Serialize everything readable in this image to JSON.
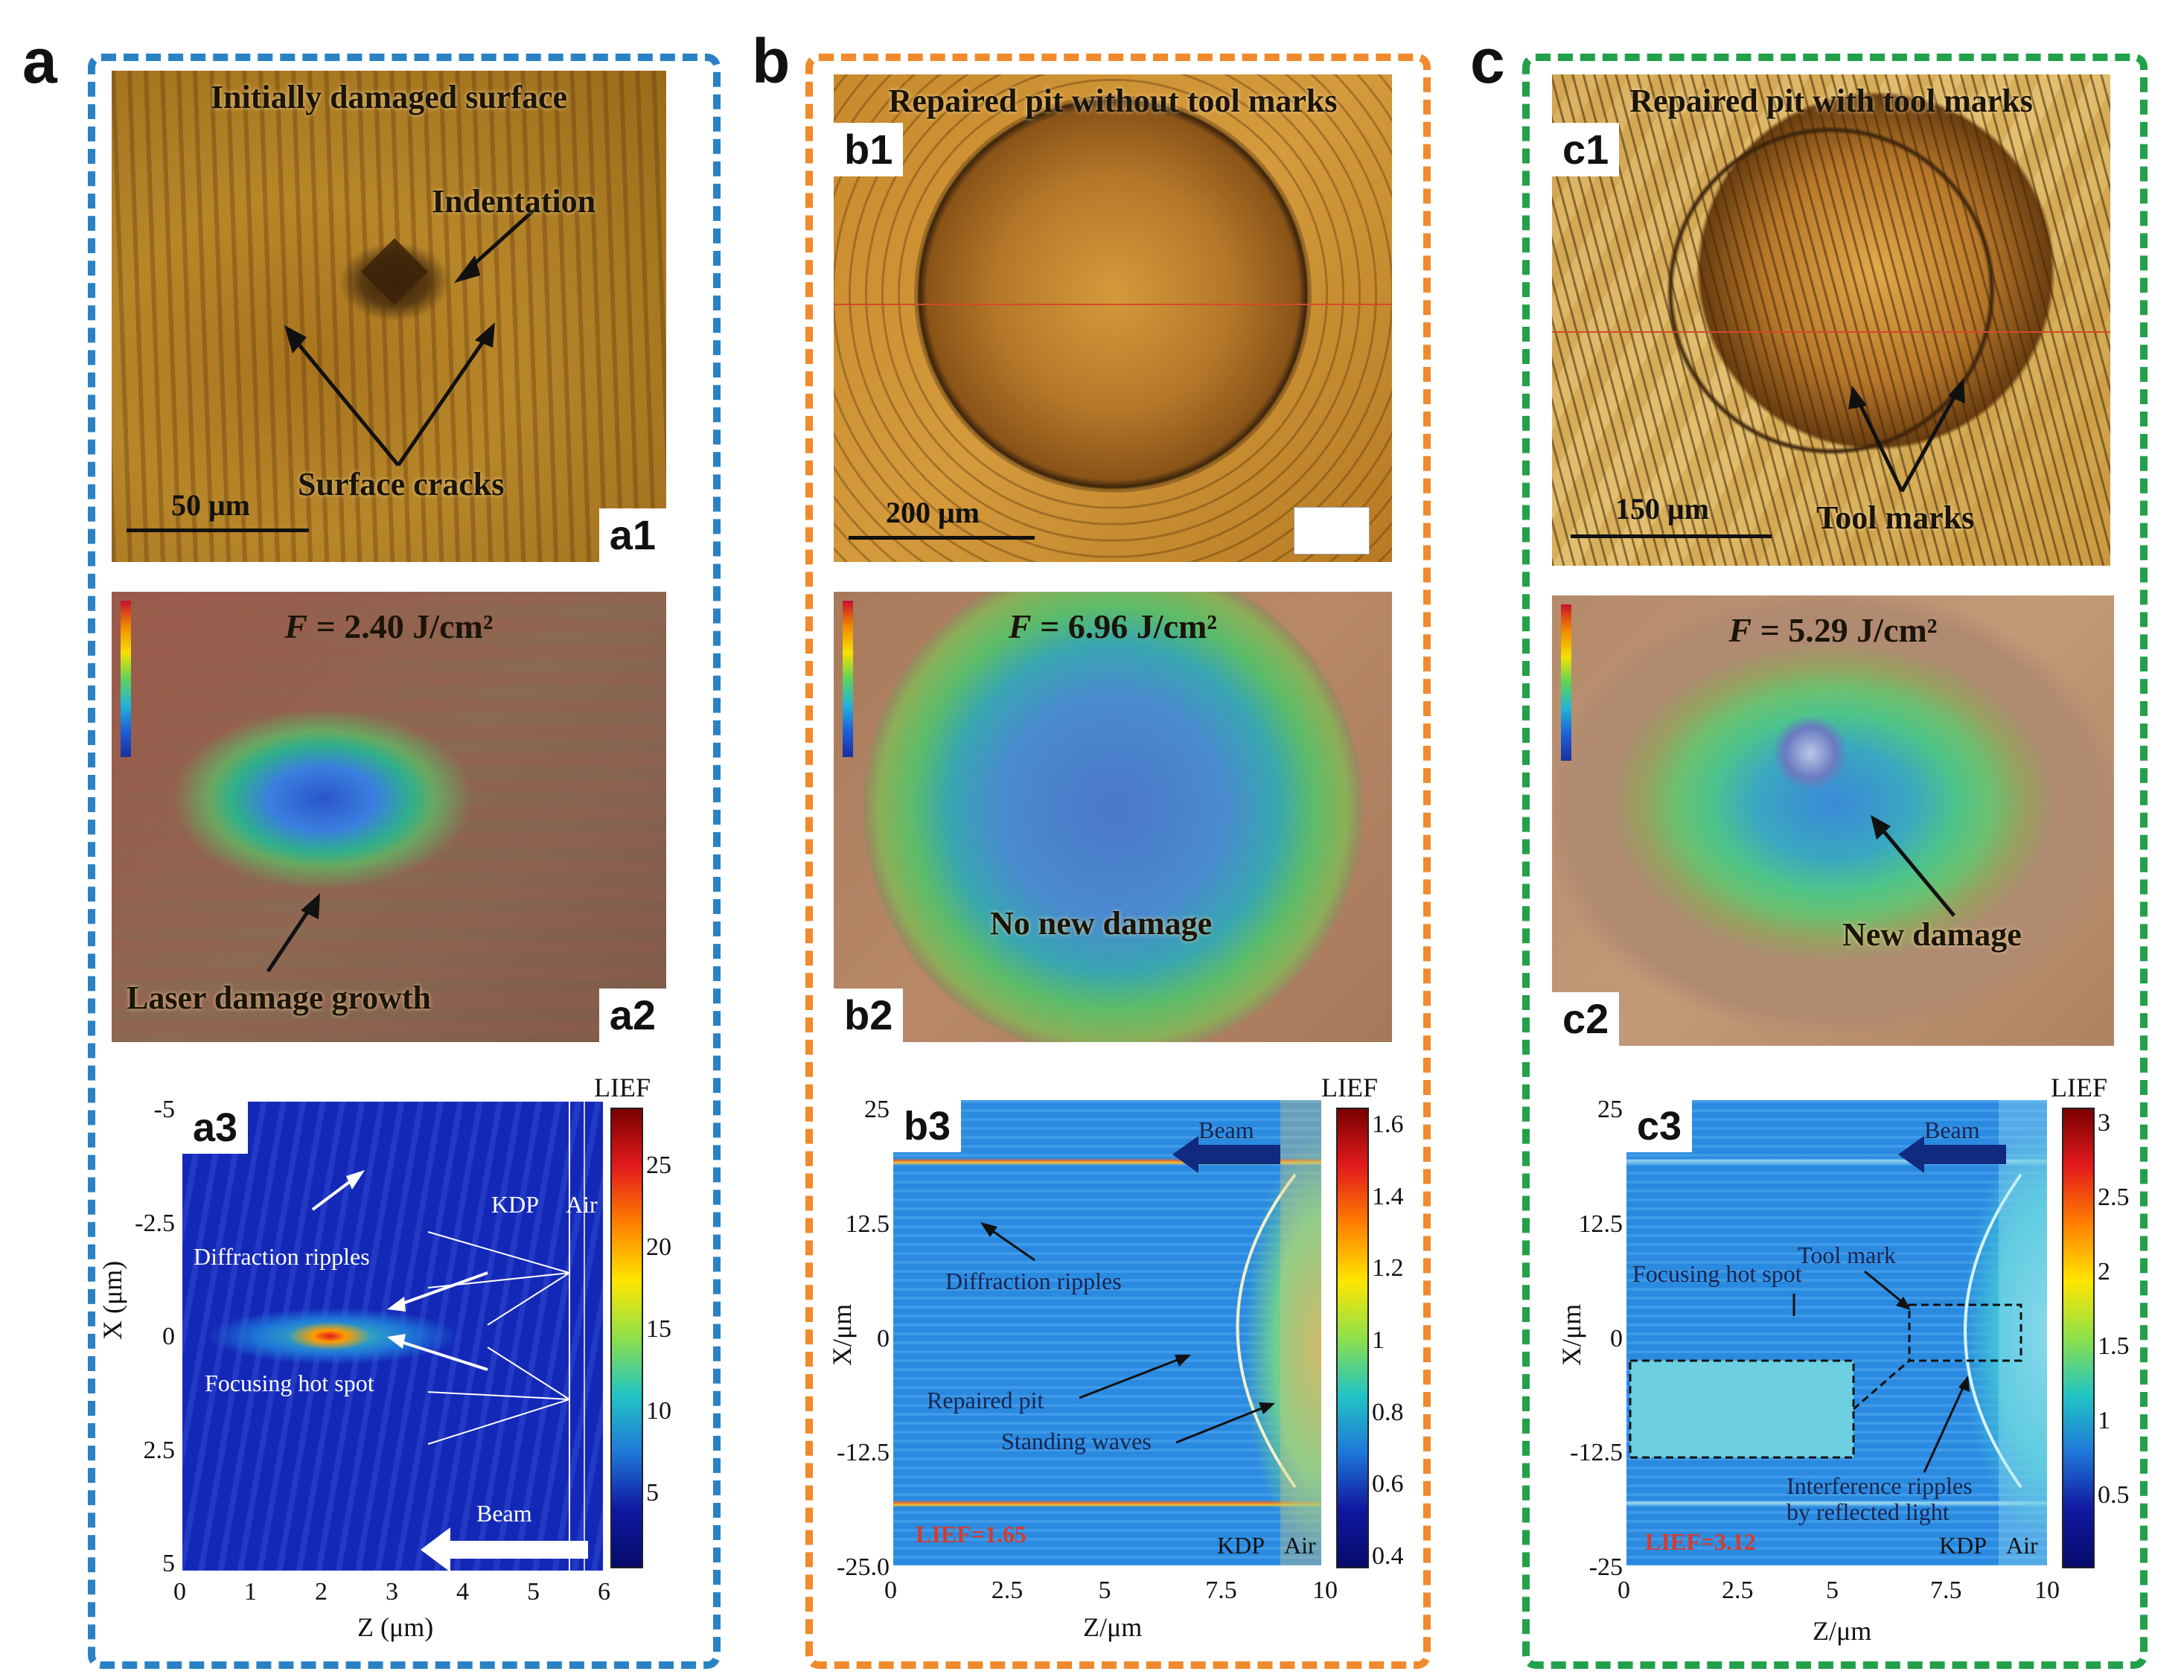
{
  "colors": {
    "box_a": "#2a82c4",
    "box_b": "#f08a2c",
    "box_c": "#22a04a",
    "accent_red": "#d63b2c"
  },
  "panels": {
    "a": {
      "letter": "a",
      "a1": {
        "tag": "a1",
        "title": "Initially damaged surface",
        "indentation": "Indentation",
        "cracks": "Surface cracks",
        "scale": "50 μm"
      },
      "a2": {
        "tag": "a2",
        "fluence_sym": "F",
        "fluence_val": " = 2.40 J/cm²",
        "growth": "Laser damage growth"
      },
      "a3": {
        "tag": "a3",
        "colorbar_title": "LIEF",
        "colorbar_ticks": [
          "25",
          "20",
          "15",
          "10",
          "5"
        ],
        "y_ticks": [
          "-5",
          "-2.5",
          "0",
          "2.5",
          "5"
        ],
        "x_ticks": [
          "0",
          "1",
          "2",
          "3",
          "4",
          "5",
          "6"
        ],
        "ylabel": "X (μm)",
        "xlabel": "Z (μm)",
        "kdp": "KDP",
        "air": "Air",
        "ripples": "Diffraction ripples",
        "hotspot": "Focusing hot spot",
        "beam": "Beam"
      }
    },
    "b": {
      "letter": "b",
      "b1": {
        "tag": "b1",
        "title": "Repaired pit without tool marks",
        "scale": "200 μm"
      },
      "b2": {
        "tag": "b2",
        "fluence_sym": "F",
        "fluence_val": " = 6.96 J/cm²",
        "note": "No new damage"
      },
      "b3": {
        "tag": "b3",
        "colorbar_title": "LIEF",
        "colorbar_ticks": [
          "1.6",
          "1.4",
          "1.2",
          "1",
          "0.8",
          "0.6",
          "0.4"
        ],
        "y_ticks": [
          "25",
          "12.5",
          "0",
          "-12.5",
          "-25.0"
        ],
        "x_ticks": [
          "0",
          "2.5",
          "5",
          "7.5",
          "10"
        ],
        "ylabel": "X/μm",
        "xlabel": "Z/μm",
        "beam": "Beam",
        "ripples": "Diffraction ripples",
        "pit": "Repaired pit",
        "waves": "Standing waves",
        "lief": "LIEF=1.65",
        "kdp": "KDP",
        "air": "Air"
      }
    },
    "c": {
      "letter": "c",
      "c1": {
        "tag": "c1",
        "title": "Repaired pit with tool marks",
        "scale": "150 μm",
        "marks": "Tool marks"
      },
      "c2": {
        "tag": "c2",
        "fluence_sym": "F",
        "fluence_val": " = 5.29 J/cm²",
        "note": "New damage"
      },
      "c3": {
        "tag": "c3",
        "colorbar_title": "LIEF",
        "colorbar_ticks": [
          "3",
          "2.5",
          "2",
          "1.5",
          "1",
          "0.5"
        ],
        "y_ticks": [
          "25",
          "12.5",
          "0",
          "-12.5",
          "-25"
        ],
        "x_ticks": [
          "0",
          "2.5",
          "5",
          "7.5",
          "10"
        ],
        "ylabel": "X/μm",
        "xlabel": "Z/μm",
        "beam": "Beam",
        "hotspot": "Focusing hot spot",
        "toolmark": "Tool mark",
        "interference1": "Interference ripples",
        "interference2": "by reflected light",
        "lief": "LIEF=3.12",
        "kdp": "KDP",
        "air": "Air"
      }
    }
  }
}
